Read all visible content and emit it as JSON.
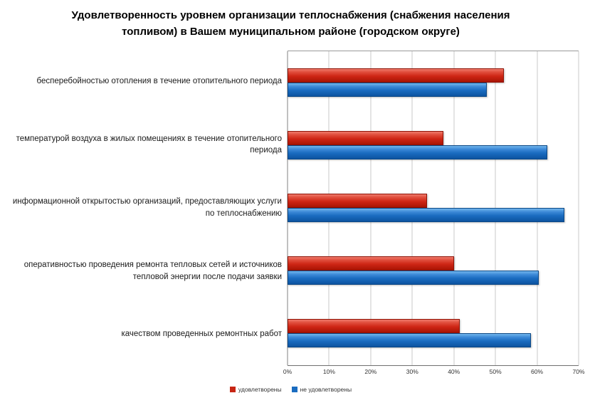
{
  "chart_data": {
    "type": "bar",
    "orientation": "horizontal",
    "title": "Удовлетворенность уровнем организации теплоснабжения (снабжения населения топливом) в Вашем муниципальном районе (городском округе)",
    "categories": [
      "бесперебойностью отопления в течение отопительного периода",
      "температурой воздуха в жилых помещениях в течение отопительного периода",
      "информационной открытостью организаций, предоставляющих услуги по теплоснабжению",
      "оперативностью проведения ремонта тепловых сетей и источников тепловой энергии после подачи заявки",
      "качеством проведенных ремонтных работ"
    ],
    "series": [
      {
        "name": "удовлетворены",
        "key": "satisfied",
        "color": "#C72513",
        "values": [
          52,
          37.5,
          33.5,
          40,
          41.5
        ]
      },
      {
        "name": "не удовлетворены",
        "key": "not-satisfied",
        "color": "#1A6CC0",
        "values": [
          48,
          62.5,
          66.5,
          60.5,
          58.5
        ]
      }
    ],
    "xlim": [
      0,
      70
    ],
    "xticks": [
      0,
      10,
      20,
      30,
      40,
      50,
      60,
      70
    ],
    "xtick_suffix": "%",
    "grid": "vertical",
    "legend_position": "bottom"
  }
}
